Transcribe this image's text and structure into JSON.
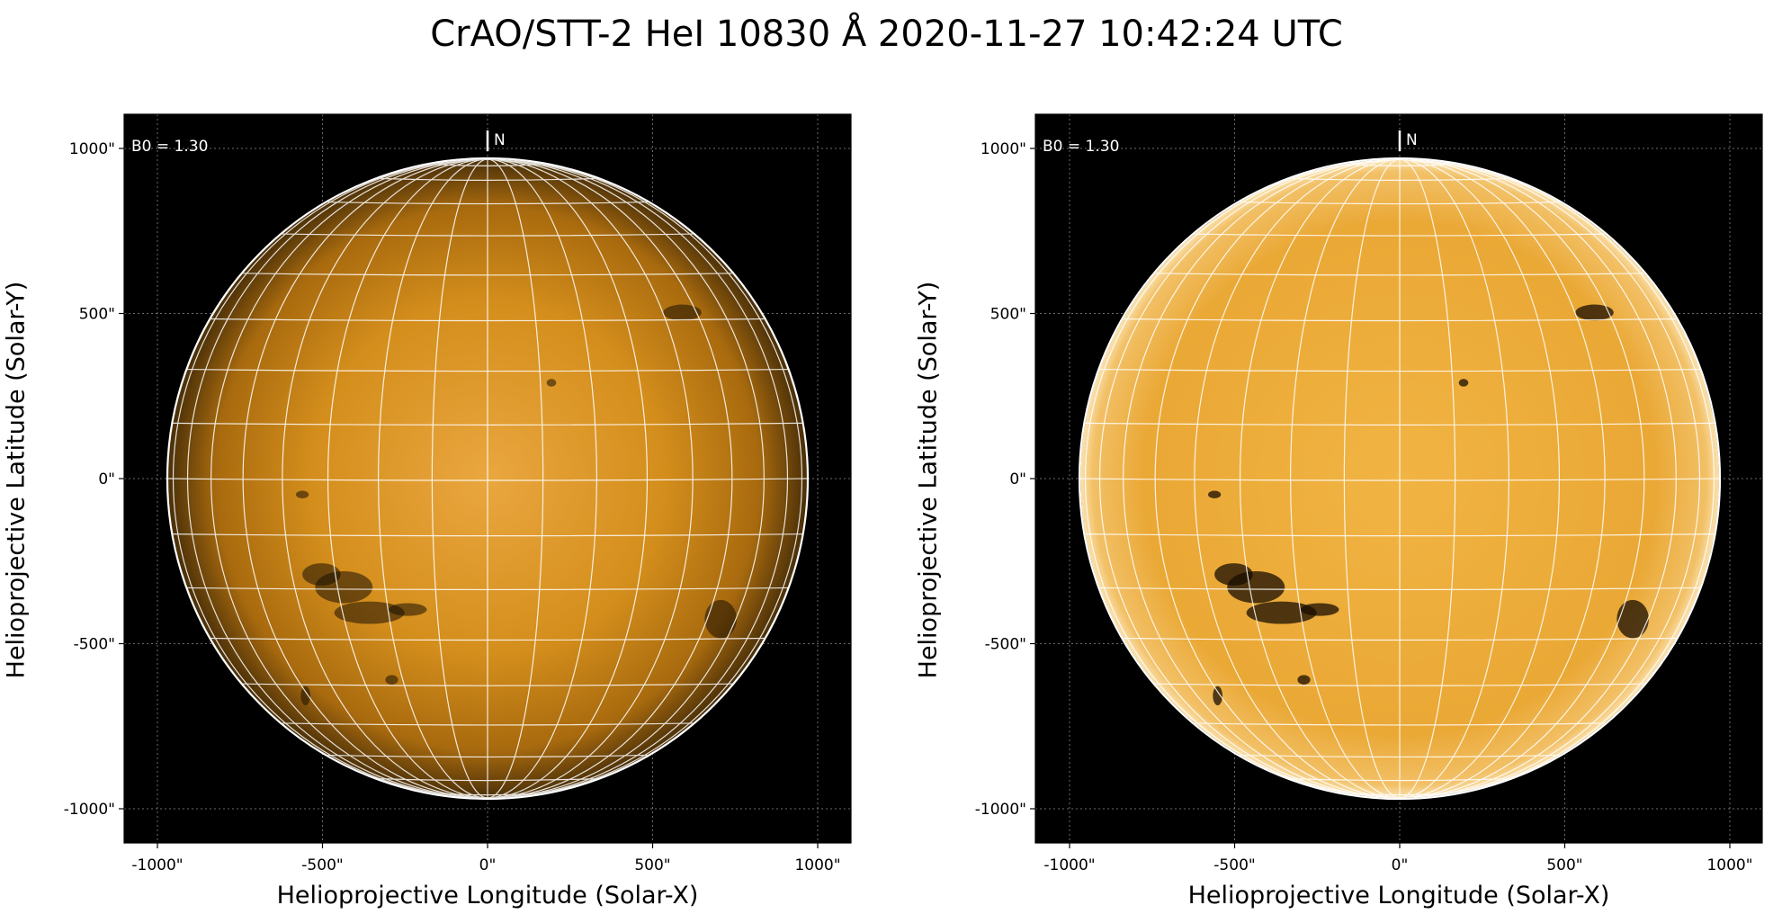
{
  "figure": {
    "title": "CrAO/STT-2 HeI 10830 Å 2020-11-27 10:42:24 UTC"
  },
  "panels": [
    {
      "id": "left",
      "variant": "original",
      "xlabel": "Helioprojective Longitude (Solar-X)",
      "ylabel": "Helioprojective Latitude (Solar-Y)",
      "x_ticks": [
        "-1000\"",
        "-500\"",
        "0\"",
        "500\"",
        "1000\""
      ],
      "y_ticks": [
        "1000\"",
        "500\"",
        "0\"",
        "-500\"",
        "-1000\""
      ],
      "b0_label": "B0 = 1.30",
      "north_label": "N"
    },
    {
      "id": "right",
      "variant": "enhanced",
      "xlabel": "Helioprojective Longitude (Solar-X)",
      "ylabel": "Helioprojective Latitude (Solar-Y)",
      "x_ticks": [
        "-1000\"",
        "-500\"",
        "0\"",
        "500\"",
        "1000\""
      ],
      "y_ticks": [
        "1000\"",
        "500\"",
        "0\"",
        "-500\"",
        "-1000\""
      ],
      "b0_label": "B0 = 1.30",
      "north_label": "N"
    }
  ],
  "colors": {
    "disk_center_original": "#e8a23a",
    "disk_edge_original": "#5a3a0c",
    "disk_original_mid": "#c98412",
    "disk_center_enhanced": "#f3b545",
    "disk_edge_enhanced": "#e8a430",
    "background": "#000000",
    "grid": "#ffffff",
    "filament": "#1a0e02"
  }
}
